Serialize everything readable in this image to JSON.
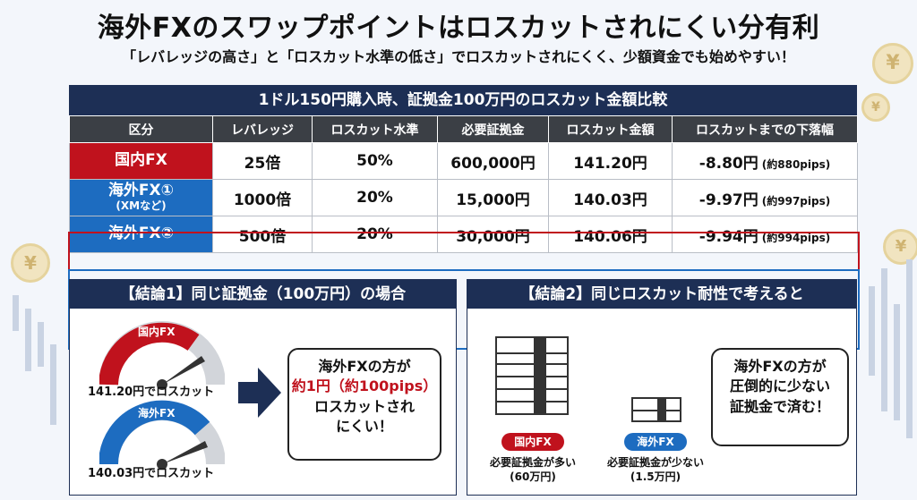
{
  "title": "海外FXのスワップポイントはロスカットされにくい分有利",
  "subtitle": "「レバレッジの高さ」と「ロスカット水準の低さ」でロスカットされにくく、少額資金でも始めやすい！",
  "table": {
    "caption": "1ドル150円購入時、証拠金100万円のロスカット金額比較",
    "headers": [
      "区分",
      "レバレッジ",
      "ロスカット水準",
      "必要証拠金",
      "ロスカット金額",
      "ロスカットまでの下落幅"
    ],
    "rows": [
      {
        "label": "国内FX",
        "sublabel": "",
        "leverage": "25倍",
        "level": "50%",
        "margin": "600,000円",
        "amount": "141.20円",
        "drop": "-8.80円",
        "pips": "(約880pips)"
      },
      {
        "label": "海外FX①",
        "sublabel": "(XMなど)",
        "leverage": "1000倍",
        "level": "20%",
        "margin": "15,000円",
        "amount": "140.03円",
        "drop": "-9.97円",
        "pips": "(約997pips)"
      },
      {
        "label": "海外FX②",
        "sublabel": "",
        "leverage": "500倍",
        "level": "20%",
        "margin": "30,000円",
        "amount": "140.06円",
        "drop": "-9.94円",
        "pips": "(約994pips)"
      }
    ]
  },
  "conclusion1": {
    "heading": "【結論1】同じ証拠金（100万円）の場合",
    "gauge_domestic_label": "国内FX",
    "gauge_domestic_caption": "141.20円でロスカット",
    "gauge_overseas_label": "海外FX",
    "gauge_overseas_caption": "140.03円でロスカット",
    "callout_line1": "海外FXの方が",
    "callout_line2": "約1円（約100pips）",
    "callout_line3": "ロスカットされ",
    "callout_line4": "にくい！"
  },
  "conclusion2": {
    "heading": "【結論2】同じロスカット耐性で考えると",
    "domestic_tag": "国内FX",
    "domestic_caption1": "必要証拠金が多い",
    "domestic_caption2": "(60万円)",
    "overseas_tag": "海外FX",
    "overseas_caption1": "必要証拠金が少ない",
    "overseas_caption2": "(1.5万円)",
    "callout_line1": "海外FXの方が",
    "callout_line2": "圧倒的に少ない",
    "callout_line3": "証拠金で済む！"
  },
  "coin_symbol": "¥",
  "colors": {
    "navy": "#1d2f55",
    "red": "#c0121d",
    "blue": "#1d6cc0",
    "header_gray": "#3b3f45"
  }
}
